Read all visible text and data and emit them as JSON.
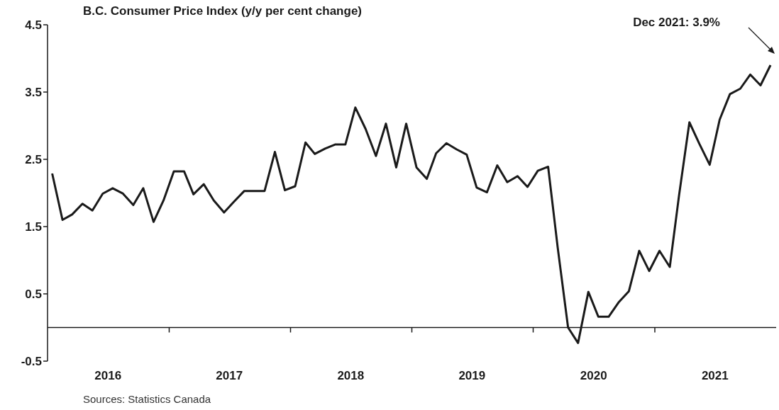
{
  "chart_data": {
    "type": "line",
    "title": "B.C. Consumer Price Index (y/y per cent change)",
    "annotations": [
      "Dec 2021: 3.9%",
      "Sources: Statistics Canada"
    ],
    "x": [
      "2016-01-15",
      "2016-02-15",
      "2016-03-15",
      "2016-04-15",
      "2016-05-15",
      "2016-06-15",
      "2016-07-15",
      "2016-08-15",
      "2016-09-15",
      "2016-10-15",
      "2016-11-15",
      "2016-12-15",
      "2017-01-15",
      "2017-02-15",
      "2017-03-15",
      "2017-04-15",
      "2017-05-15",
      "2017-06-15",
      "2017-07-15",
      "2017-08-15",
      "2017-09-15",
      "2017-10-15",
      "2017-11-15",
      "2017-12-15",
      "2018-01-15",
      "2018-02-15",
      "2018-03-15",
      "2018-04-15",
      "2018-05-15",
      "2018-06-15",
      "2018-07-15",
      "2018-08-15",
      "2018-09-15",
      "2018-10-15",
      "2018-11-15",
      "2018-12-15",
      "2019-01-15",
      "2019-02-15",
      "2019-03-15",
      "2019-04-15",
      "2019-05-15",
      "2019-06-15",
      "2019-07-15",
      "2019-08-15",
      "2019-09-15",
      "2019-10-15",
      "2019-11-15",
      "2019-12-15",
      "2020-01-15",
      "2020-02-15",
      "2020-03-15",
      "2020-04-15",
      "2020-05-15",
      "2020-06-15",
      "2020-07-15",
      "2020-08-15",
      "2020-09-15",
      "2020-10-15",
      "2020-11-15",
      "2020-12-15",
      "2021-01-15",
      "2021-02-15",
      "2021-03-15",
      "2021-04-15",
      "2021-05-15",
      "2021-06-15",
      "2021-07-15",
      "2021-08-15",
      "2021-09-15",
      "2021-10-15",
      "2021-11-15",
      "2021-12-15"
    ],
    "series": [
      {
        "color": "#1a1a1a",
        "values": [
          2.29,
          1.6,
          1.68,
          1.84,
          1.74,
          1.99,
          2.07,
          1.99,
          1.82,
          2.07,
          1.57,
          1.89,
          2.32,
          2.32,
          1.98,
          2.13,
          1.89,
          1.71,
          1.87,
          2.03,
          2.03,
          2.03,
          2.61,
          2.04,
          2.1,
          2.75,
          2.58,
          2.66,
          2.72,
          2.72,
          3.27,
          2.95,
          2.55,
          3.03,
          2.38,
          3.03,
          2.38,
          2.21,
          2.59,
          2.74,
          2.65,
          2.57,
          2.08,
          2.01,
          2.41,
          2.16,
          2.25,
          2.09,
          2.33,
          2.39,
          1.18,
          0.0,
          -0.23,
          0.53,
          0.16,
          0.16,
          0.38,
          0.54,
          1.14,
          0.84,
          1.14,
          0.9,
          1.97,
          3.05,
          2.73,
          2.42,
          3.09,
          3.47,
          3.55,
          3.76,
          3.6,
          3.9
        ]
      }
    ],
    "xlim": [
      "2016-01-01",
      "2022-01-01"
    ],
    "xticks": [
      {
        "value": "2016-07-01",
        "label": "2016"
      },
      {
        "value": "2017-01-01",
        "label": null
      },
      {
        "value": "2017-07-01",
        "label": "2017"
      },
      {
        "value": "2018-01-01",
        "label": null
      },
      {
        "value": "2018-07-01",
        "label": "2018"
      },
      {
        "value": "2019-01-01",
        "label": null
      },
      {
        "value": "2019-07-01",
        "label": "2019"
      },
      {
        "value": "2020-01-01",
        "label": null
      },
      {
        "value": "2020-07-01",
        "label": "2020"
      },
      {
        "value": "2021-01-01",
        "label": null
      },
      {
        "value": "2021-07-01",
        "label": "2021"
      }
    ],
    "ylim": [
      -0.5,
      4.5
    ],
    "yticks": [
      -0.5,
      0.5,
      1.5,
      2.5,
      3.5,
      4.5
    ]
  }
}
